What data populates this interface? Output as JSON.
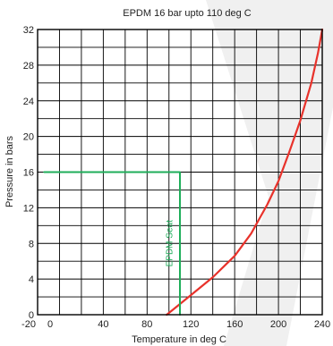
{
  "chart_data": {
    "type": "line",
    "title": "EPDM 16 bar upto 110 deg C",
    "xlabel": "Temperature in deg C",
    "ylabel": "Pressure in bars",
    "xlim": [
      -20,
      240
    ],
    "ylim": [
      0,
      32
    ],
    "x_ticks": [
      "-20",
      "0",
      "40",
      "80",
      "120",
      "160",
      "200",
      "240"
    ],
    "x_tick_values": [
      -20,
      0,
      40,
      80,
      120,
      160,
      200,
      240
    ],
    "y_ticks": [
      "0",
      "4",
      "8",
      "12",
      "16",
      "20",
      "24",
      "28",
      "32"
    ],
    "y_tick_values": [
      0,
      4,
      8,
      12,
      16,
      20,
      24,
      28,
      32
    ],
    "grid": true,
    "series": [
      {
        "color": "#e8322b",
        "x": [
          98,
          120,
          140,
          160,
          175,
          190,
          200,
          210,
          220,
          230,
          236,
          240
        ],
        "y": [
          0,
          2.2,
          4.2,
          6.6,
          9.1,
          12.4,
          15.0,
          18.3,
          21.8,
          26.0,
          29.3,
          32
        ]
      },
      {
        "color": "#1fae5a",
        "x": [
          -14,
          110,
          110
        ],
        "y": [
          16,
          16,
          0
        ]
      }
    ],
    "annotations": [
      {
        "text": "EPDM Seat",
        "color": "#1fae5a",
        "x": 103,
        "y": 8
      }
    ]
  },
  "watermark_color": "#e3e3e3"
}
